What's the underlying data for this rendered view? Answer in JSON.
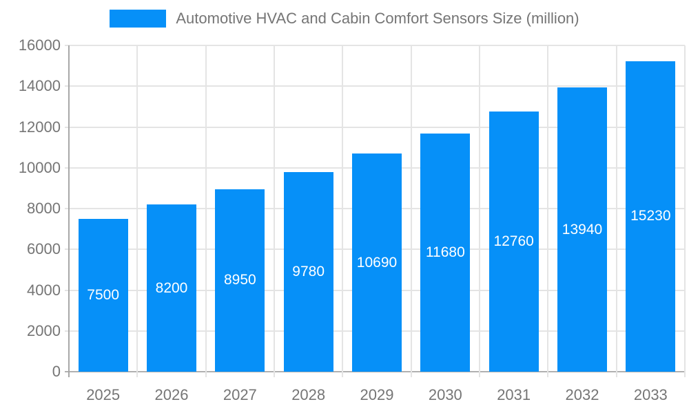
{
  "chart_data": {
    "type": "bar",
    "categories": [
      "2025",
      "2026",
      "2027",
      "2028",
      "2029",
      "2030",
      "2031",
      "2032",
      "2033"
    ],
    "series": [
      {
        "name": "Automotive HVAC and Cabin Comfort Sensors Size (million)",
        "values": [
          7500,
          8200,
          8950,
          9780,
          10690,
          11680,
          12760,
          13940,
          15230
        ]
      }
    ],
    "bar_value_labels": [
      "7500",
      "8200",
      "8950",
      "9780",
      "10690",
      "11680",
      "12760",
      "13940",
      "15230"
    ],
    "xlabel": "",
    "ylabel": "",
    "ylim": [
      0,
      16000
    ],
    "ytick_step": 2000,
    "ytick_labels": [
      "0",
      "2000",
      "4000",
      "6000",
      "8000",
      "10000",
      "12000",
      "14000",
      "16000"
    ],
    "legend_position": "top",
    "grid": "both",
    "colors": {
      "bar": "#0690f8",
      "bar_label_text": "#ffffff",
      "axis_text": "#757575",
      "gridline": "#e4e4e4",
      "axis_line": "#a8a8a8",
      "baseline": "#b0b0b0",
      "background": "#ffffff"
    }
  }
}
